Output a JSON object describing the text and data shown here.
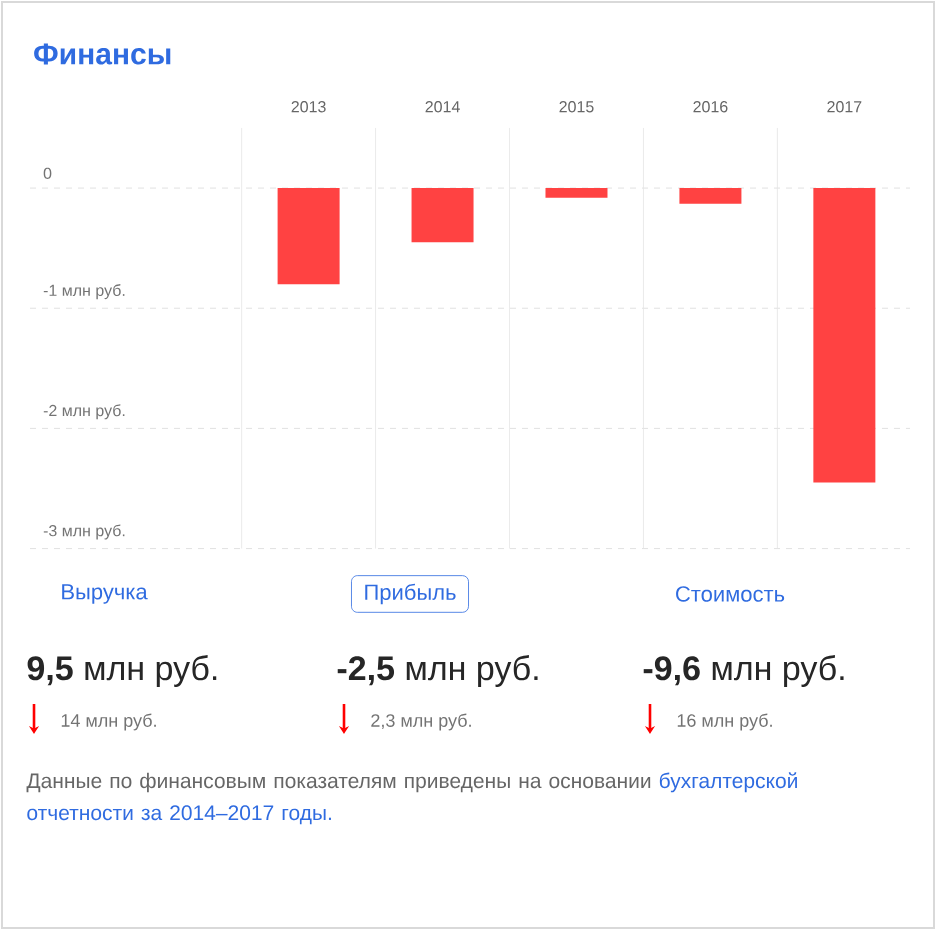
{
  "chart_data": {
    "type": "bar",
    "title": "Финансы",
    "categories": [
      "2013",
      "2014",
      "2015",
      "2016",
      "2017"
    ],
    "values": [
      -0.8,
      -0.45,
      -0.08,
      -0.13,
      -2.45
    ],
    "color": "#ff4242",
    "ylim": [
      -3,
      0.5
    ],
    "yticks": [
      0,
      {
        "value": -1,
        "label": "-1 млн руб."
      },
      {
        "value": -2,
        "label": "-2 млн руб."
      },
      {
        "value": -3,
        "label": "-3 млн руб."
      }
    ],
    "grid": true,
    "annotations": [
      "Выручка",
      "Прибыль",
      "Стоимость",
      "**9,5** млн руб.",
      "**-2,5** млн руб.",
      "**-9,6** млн руб.",
      "14 млн руб.",
      "2,3 млн руб.",
      "16 млн руб.",
      "Данные по финансовым показателям приведены на основании ",
      "бухгалтерской отчетности за 2014–2017 годы."
    ]
  }
}
